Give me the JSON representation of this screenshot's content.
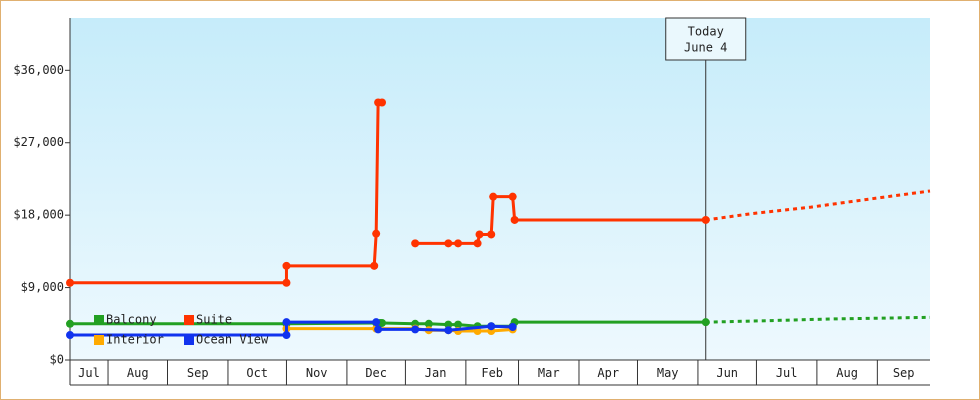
{
  "chart_data": {
    "type": "step",
    "xlim": [
      0,
      441
    ],
    "xticks": [
      {
        "value": 0,
        "label": "Jul"
      },
      {
        "value": 19.5,
        "label": "Aug"
      },
      {
        "value": 50,
        "label": "Sep"
      },
      {
        "value": 81,
        "label": "Oct"
      },
      {
        "value": 111,
        "label": "Nov"
      },
      {
        "value": 142,
        "label": "Dec"
      },
      {
        "value": 172,
        "label": "Jan"
      },
      {
        "value": 203,
        "label": "Feb"
      },
      {
        "value": 230,
        "label": "Mar"
      },
      {
        "value": 261,
        "label": "Apr"
      },
      {
        "value": 291,
        "label": "May"
      },
      {
        "value": 322,
        "label": "Jun"
      },
      {
        "value": 352,
        "label": "Jul"
      },
      {
        "value": 383,
        "label": "Aug"
      },
      {
        "value": 414,
        "label": "Sep"
      }
    ],
    "ylim": [
      0,
      42500
    ],
    "yticks": [
      {
        "value": 0,
        "label": "$0"
      },
      {
        "value": 9000,
        "label": "$9,000"
      },
      {
        "value": 18000,
        "label": "$18,000"
      },
      {
        "value": 27000,
        "label": "$27,000"
      },
      {
        "value": 36000,
        "label": "$36,000"
      }
    ],
    "annotation": {
      "x": 326,
      "lines": [
        "Today",
        "June 4"
      ]
    },
    "legend": "lower left",
    "series": [
      {
        "name": "Balcony",
        "color": "#22a022",
        "x": [
          0,
          111,
          157,
          159,
          160,
          177,
          184,
          194,
          199,
          209,
          216,
          227,
          228,
          326
        ],
        "values": [
          4500,
          4500,
          4600,
          4600,
          4600,
          4500,
          4500,
          4400,
          4400,
          4200,
          4200,
          4200,
          4700,
          4700
        ],
        "forecast": {
          "x": [
            326,
            360,
            390,
            441
          ],
          "values": [
            4700,
            4900,
            5100,
            5300
          ]
        }
      },
      {
        "name": "Suite",
        "color": "#ff3300",
        "x": [
          0,
          111,
          111,
          156,
          157,
          158,
          160,
          169,
          177,
          194,
          199,
          209,
          210,
          216,
          217,
          227,
          228,
          326
        ],
        "values": [
          9600,
          9600,
          11700,
          11700,
          15700,
          32000,
          32000,
          null,
          14500,
          14500,
          14500,
          14500,
          15600,
          15600,
          20300,
          20300,
          17400,
          17400
        ],
        "forecast": {
          "x": [
            326,
            350,
            380,
            410,
            441
          ],
          "values": [
            17400,
            18200,
            19000,
            20000,
            21000
          ]
        }
      },
      {
        "name": "Interior",
        "color": "#ffaa00",
        "x": [
          111,
          157,
          177,
          184,
          194,
          199,
          209,
          216,
          227
        ],
        "values": [
          3900,
          3900,
          3900,
          3700,
          3700,
          3600,
          3600,
          3600,
          3800
        ]
      },
      {
        "name": "Ocean View",
        "color": "#1133ee",
        "x": [
          0,
          111,
          111,
          157,
          158,
          177,
          194,
          216,
          227
        ],
        "values": [
          3100,
          3100,
          4700,
          4700,
          3800,
          3800,
          3700,
          4200,
          4100
        ]
      }
    ]
  }
}
